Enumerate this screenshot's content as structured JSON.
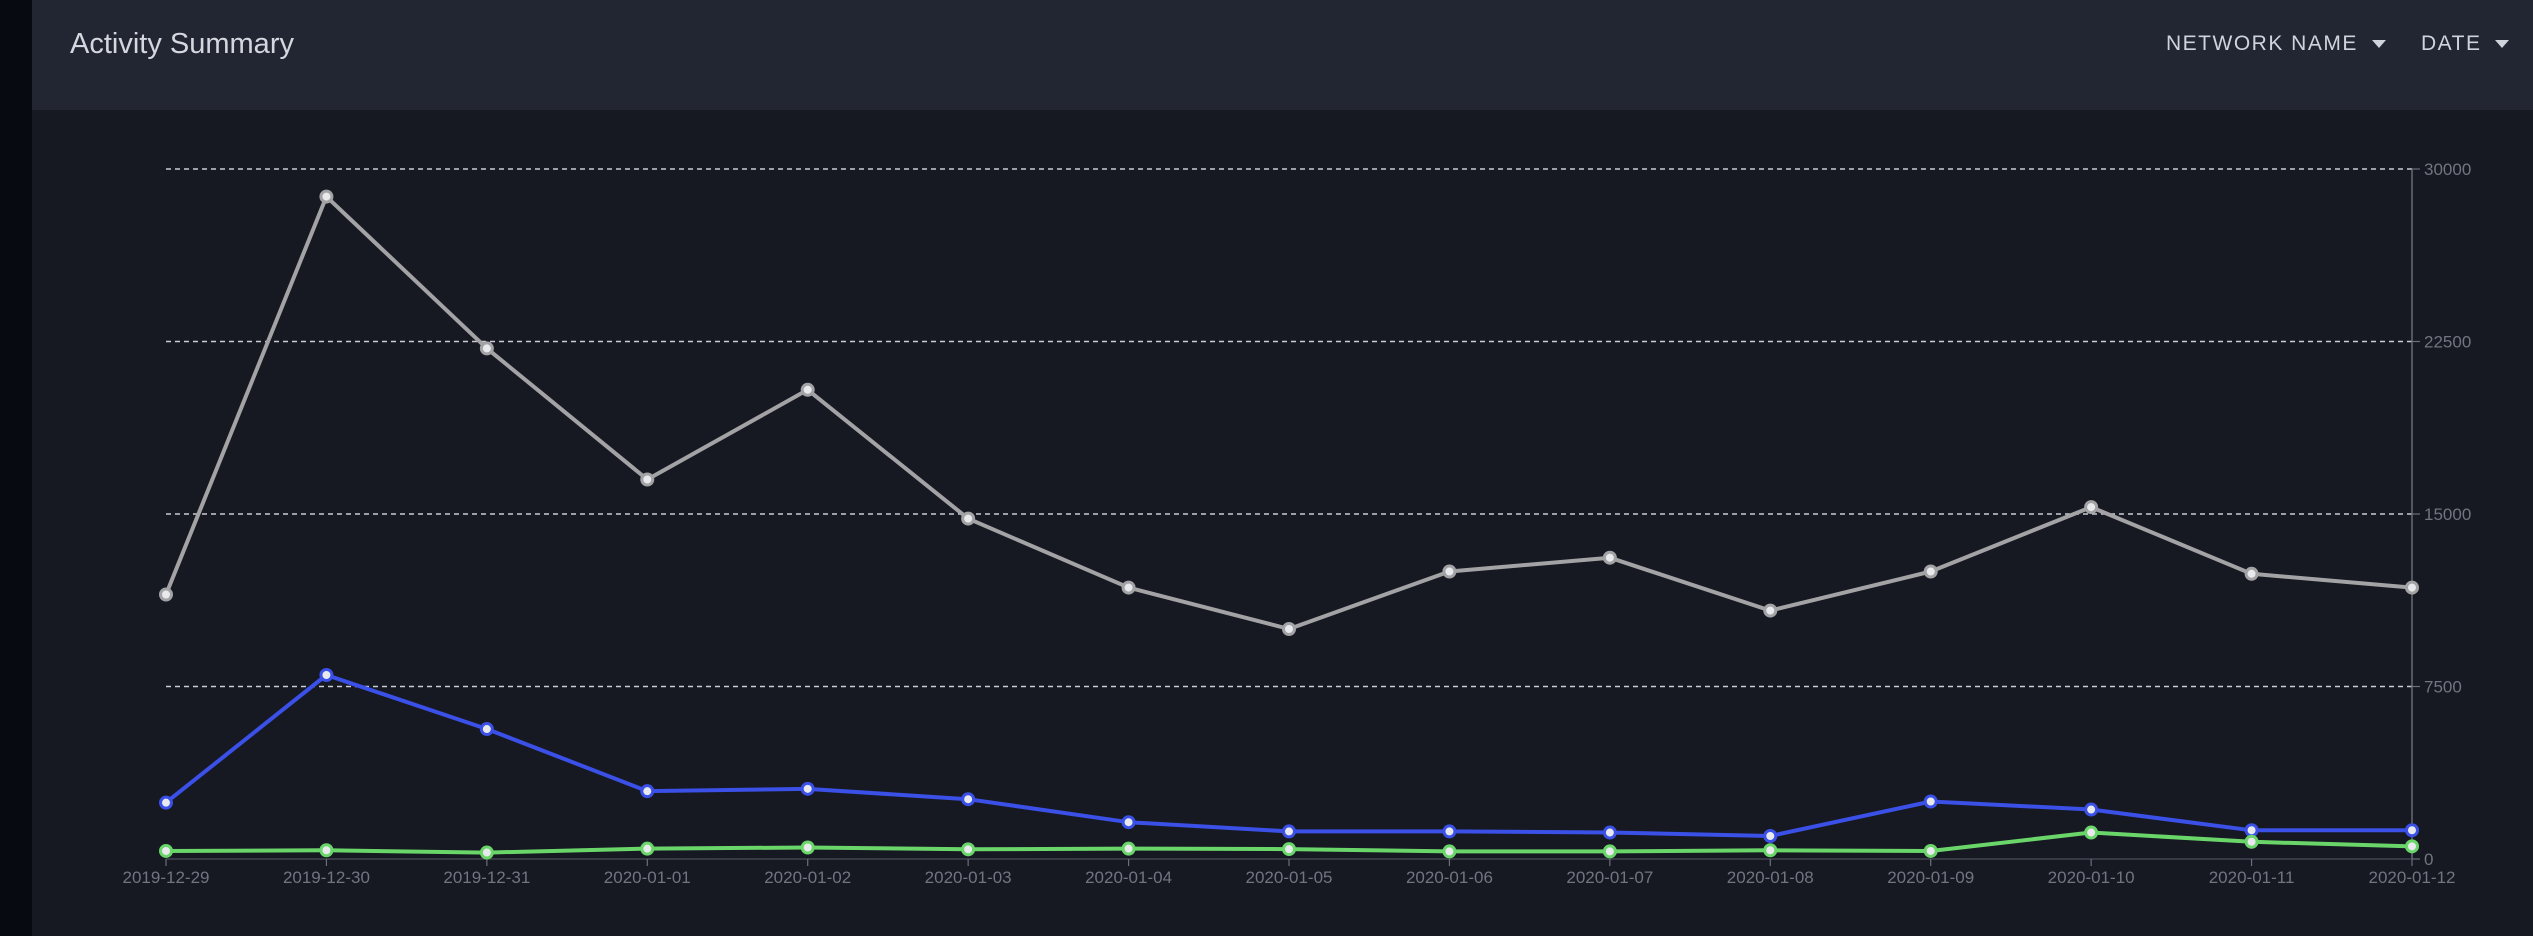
{
  "header": {
    "title": "Activity Summary",
    "network_dropdown_label": "NETWORK NAME",
    "date_dropdown_label": "DATE"
  },
  "colors": {
    "background": "#161822",
    "header_background": "#222633",
    "side_strip": "#070a10",
    "series_gray": "#a3a3a6",
    "series_blue": "#3a50e6",
    "series_green": "#6ad66a"
  },
  "chart_data": {
    "type": "line",
    "title": "",
    "xlabel": "",
    "ylabel": "",
    "x": [
      "2019-12-29",
      "2019-12-30",
      "2019-12-31",
      "2020-01-01",
      "2020-01-02",
      "2020-01-03",
      "2020-01-04",
      "2020-01-05",
      "2020-01-06",
      "2020-01-07",
      "2020-01-08",
      "2020-01-09",
      "2020-01-10",
      "2020-01-11",
      "2020-01-12"
    ],
    "y_ticks": [
      "0",
      "7500",
      "15000",
      "22500",
      "30000"
    ],
    "ylim": [
      0,
      30000
    ],
    "y_axis_position": "right",
    "grid": "horizontal dashed",
    "series": [
      {
        "color": "#a3a3a6",
        "values": [
          11500,
          28800,
          22200,
          16500,
          20400,
          14800,
          11800,
          10000,
          12500,
          13100,
          10800,
          12500,
          15300,
          12400,
          11800
        ]
      },
      {
        "color": "#3a50e6",
        "values": [
          2450,
          8000,
          5650,
          2950,
          3050,
          2600,
          1600,
          1200,
          1200,
          1150,
          1000,
          2500,
          2150,
          1250,
          1250
        ]
      },
      {
        "color": "#6ad66a",
        "values": [
          350,
          380,
          280,
          450,
          500,
          420,
          450,
          430,
          330,
          330,
          380,
          350,
          1150,
          750,
          550
        ]
      }
    ]
  }
}
